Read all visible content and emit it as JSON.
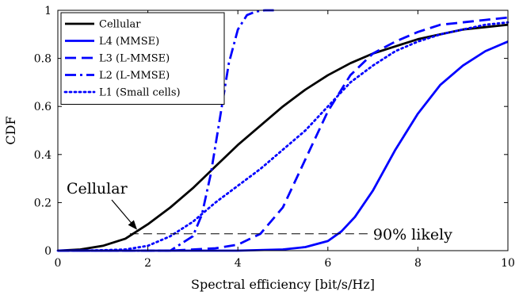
{
  "chart_data": {
    "type": "line",
    "xlabel": "Spectral efficiency [bit/s/Hz]",
    "ylabel": "CDF",
    "xlim": [
      0,
      10
    ],
    "ylim": [
      0,
      1
    ],
    "xticks": [
      0,
      2,
      4,
      6,
      8,
      10
    ],
    "yticks": [
      0,
      0.2,
      0.4,
      0.6,
      0.8,
      1
    ],
    "xtick_labels": [
      "0",
      "2",
      "4",
      "6",
      "8",
      "10"
    ],
    "ytick_labels": [
      "0",
      "0.2",
      "0.4",
      "0.6",
      "0.8",
      "1"
    ],
    "grid": false,
    "legend_position": "top-left",
    "series": [
      {
        "name": "Cellular",
        "color": "#000000",
        "style": "solid",
        "x": [
          0,
          0.5,
          1.0,
          1.5,
          2.0,
          2.5,
          3.0,
          3.5,
          4.0,
          4.5,
          5.0,
          5.5,
          6.0,
          6.5,
          7.0,
          7.5,
          8.0,
          8.5,
          9.0,
          9.5,
          10.0
        ],
        "y": [
          0.0,
          0.005,
          0.02,
          0.05,
          0.11,
          0.18,
          0.26,
          0.35,
          0.44,
          0.52,
          0.6,
          0.67,
          0.73,
          0.78,
          0.82,
          0.85,
          0.88,
          0.9,
          0.92,
          0.93,
          0.94
        ]
      },
      {
        "name": "L4 (MMSE)",
        "color": "#0000ff",
        "style": "solid",
        "x": [
          0,
          4.0,
          5.0,
          5.5,
          6.0,
          6.3,
          6.6,
          7.0,
          7.5,
          8.0,
          8.5,
          9.0,
          9.5,
          10.0
        ],
        "y": [
          0.0,
          0.0,
          0.005,
          0.015,
          0.04,
          0.08,
          0.14,
          0.25,
          0.42,
          0.57,
          0.69,
          0.77,
          0.83,
          0.87
        ]
      },
      {
        "name": "L3 (L-MMSE)",
        "color": "#0000ff",
        "style": "dashed",
        "x": [
          0,
          2.5,
          3.0,
          3.5,
          4.0,
          4.5,
          5.0,
          5.5,
          6.0,
          6.5,
          7.0,
          7.5,
          8.0,
          8.5,
          9.0,
          9.5,
          10.0
        ],
        "y": [
          0.0,
          0.0,
          0.005,
          0.01,
          0.025,
          0.07,
          0.18,
          0.38,
          0.58,
          0.73,
          0.82,
          0.87,
          0.91,
          0.94,
          0.95,
          0.96,
          0.97
        ]
      },
      {
        "name": "L2 (L-MMSE)",
        "color": "#0000ff",
        "style": "dashdot",
        "x": [
          0,
          2.5,
          3.0,
          3.2,
          3.4,
          3.6,
          3.8,
          4.0,
          4.2,
          4.4,
          4.6,
          4.8
        ],
        "y": [
          0.0,
          0.0,
          0.06,
          0.15,
          0.32,
          0.55,
          0.78,
          0.92,
          0.98,
          0.995,
          1.0,
          1.0
        ]
      },
      {
        "name": "L1 (Small cells)",
        "color": "#0000ff",
        "style": "dotted",
        "x": [
          0,
          0.5,
          1.0,
          1.5,
          2.0,
          2.5,
          3.0,
          3.5,
          4.0,
          4.5,
          5.0,
          5.5,
          6.0,
          6.5,
          7.0,
          7.5,
          8.0,
          8.5,
          9.0,
          9.5,
          10.0
        ],
        "y": [
          0.0,
          0.0,
          0.002,
          0.005,
          0.02,
          0.06,
          0.12,
          0.2,
          0.27,
          0.34,
          0.42,
          0.5,
          0.6,
          0.7,
          0.77,
          0.83,
          0.87,
          0.9,
          0.92,
          0.94,
          0.95
        ]
      }
    ],
    "annotations": [
      {
        "text": "Cellular",
        "arrow_to_x": 1.8,
        "arrow_to_y": 0.08
      },
      {
        "text": "90% likely",
        "reference_line_y": 0.07,
        "x_from": 1.6,
        "x_to": 6.9
      }
    ]
  }
}
